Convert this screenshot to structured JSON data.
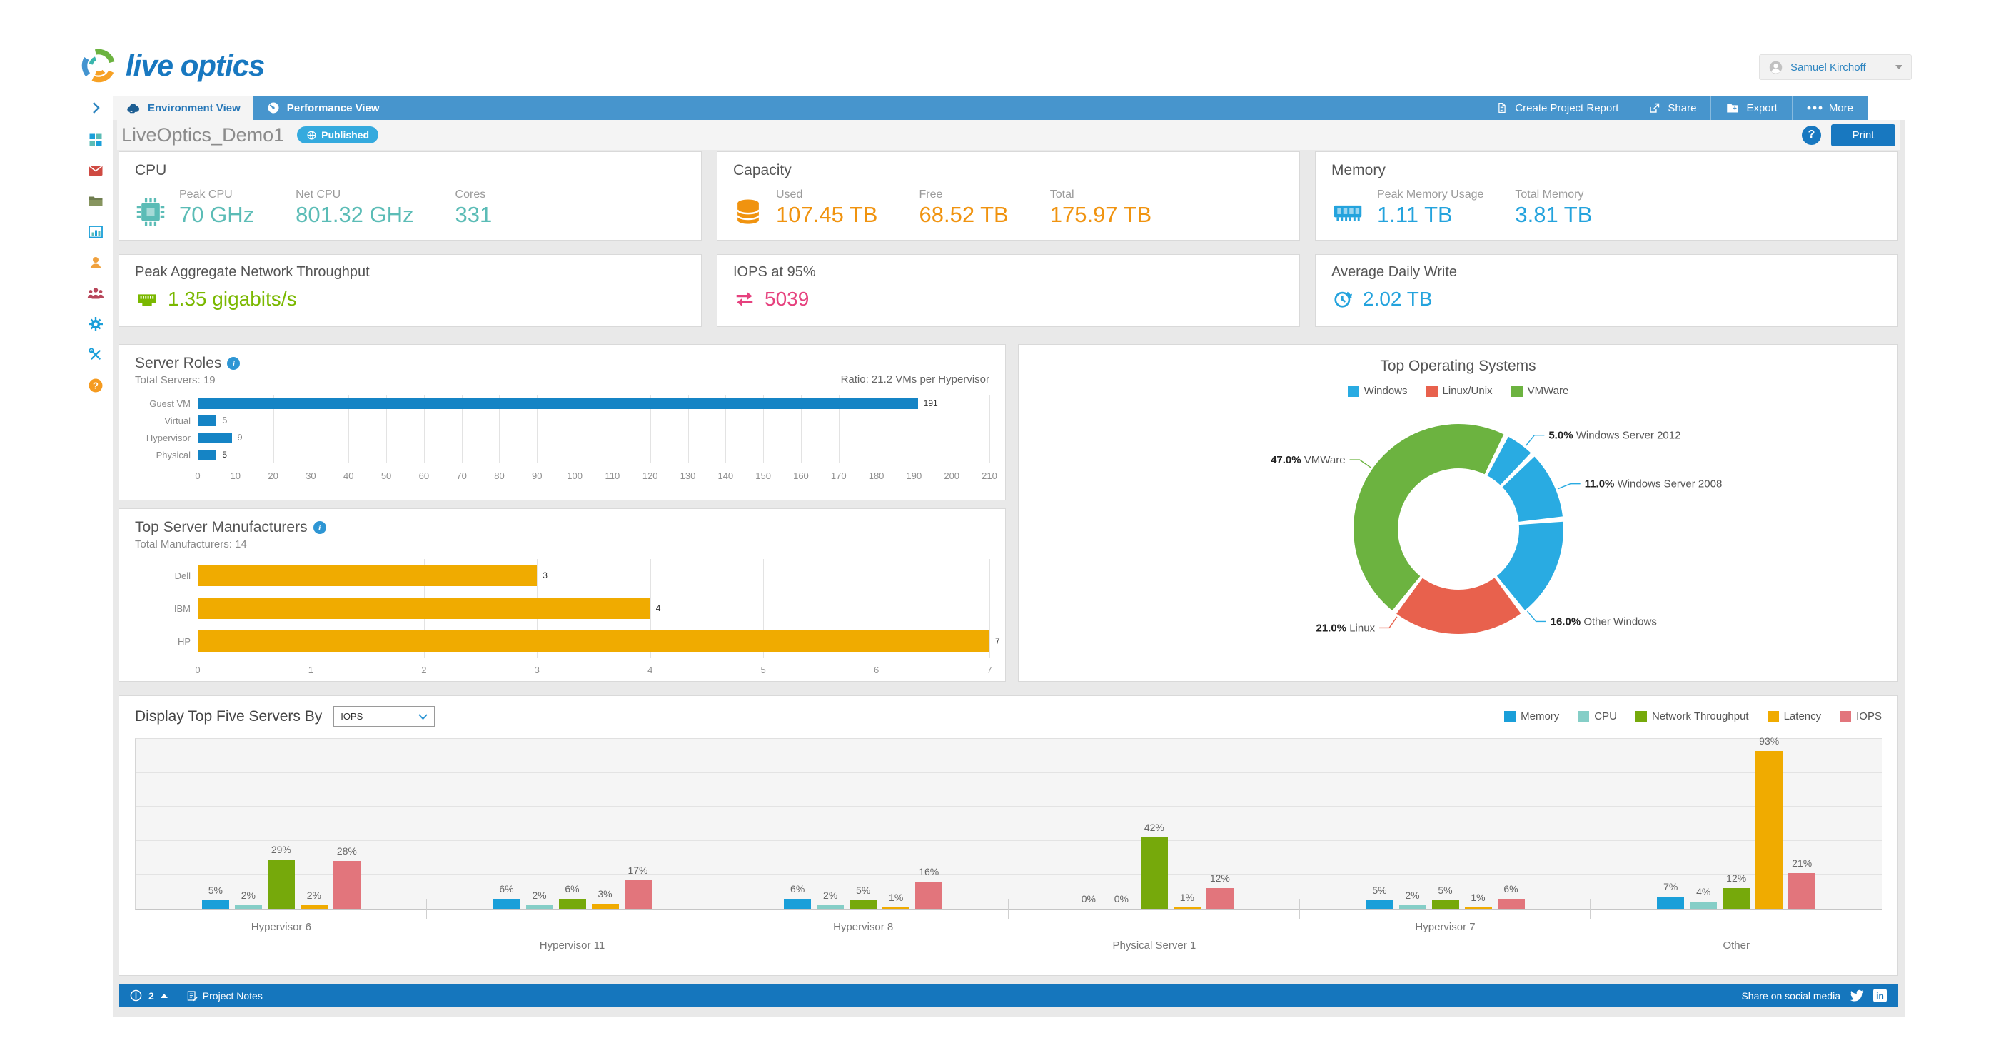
{
  "header": {
    "logo_text": "live optics",
    "user_name": "Samuel Kirchoff"
  },
  "nav": {
    "tabs": [
      {
        "label": "Environment View",
        "active": true
      },
      {
        "label": "Performance View",
        "active": false
      }
    ],
    "actions": [
      {
        "label": "Create Project Report"
      },
      {
        "label": "Share"
      },
      {
        "label": "Export"
      },
      {
        "label": "More"
      }
    ]
  },
  "title_bar": {
    "project_name": "LiveOptics_Demo1",
    "status_badge": "Published",
    "help_label": "?",
    "print_label": "Print"
  },
  "cards": {
    "cpu": {
      "title": "CPU",
      "accent": "#5bbcb6",
      "metrics": [
        {
          "label": "Peak CPU",
          "value": "70 GHz"
        },
        {
          "label": "Net CPU",
          "value": "801.32 GHz"
        },
        {
          "label": "Cores",
          "value": "331"
        }
      ]
    },
    "capacity": {
      "title": "Capacity",
      "accent": "#f0930f",
      "metrics": [
        {
          "label": "Used",
          "value": "107.45 TB"
        },
        {
          "label": "Free",
          "value": "68.52 TB"
        },
        {
          "label": "Total",
          "value": "175.97 TB"
        }
      ]
    },
    "memory": {
      "title": "Memory",
      "accent": "#24a3dd",
      "metrics": [
        {
          "label": "Peak Memory Usage",
          "value": "1.11 TB"
        },
        {
          "label": "Total Memory",
          "value": "3.81 TB"
        }
      ]
    },
    "network": {
      "title": "Peak Aggregate Network Throughput",
      "accent": "#7ab800",
      "value": "1.35 gigabits/s"
    },
    "iops": {
      "title": "IOPS at 95%",
      "accent": "#e6417e",
      "value": "5039"
    },
    "daily_write": {
      "title": "Average Daily Write",
      "accent": "#24a3dd",
      "value": "2.02 TB"
    }
  },
  "chart_data": {
    "server_roles": {
      "type": "bar",
      "orientation": "horizontal",
      "title": "Server Roles",
      "subtitle": "Total Servers: 19",
      "annotation": "Ratio: 21.2 VMs per Hypervisor",
      "categories": [
        "Guest VM",
        "Virtual",
        "Hypervisor",
        "Physical"
      ],
      "values": [
        191,
        5,
        9,
        5
      ],
      "xlim": [
        0,
        210
      ],
      "tick_step": 10,
      "bar_color": "#1584c5",
      "grid": true
    },
    "manufacturers": {
      "type": "bar",
      "orientation": "horizontal",
      "title": "Top Server Manufacturers",
      "subtitle": "Total Manufacturers: 14",
      "categories": [
        "Dell",
        "IBM",
        "HP"
      ],
      "values": [
        3,
        4,
        7
      ],
      "xlim": [
        0,
        7
      ],
      "tick_step": 1,
      "bar_color": "#f0ab00",
      "grid": true
    },
    "operating_systems": {
      "type": "pie",
      "title": "Top Operating Systems",
      "legend": [
        {
          "label": "Windows",
          "color": "#29abe2"
        },
        {
          "label": "Linux/Unix",
          "color": "#e8614d"
        },
        {
          "label": "VMWare",
          "color": "#6cb340"
        }
      ],
      "slices": [
        {
          "label": "VMWare",
          "pct": 47.0,
          "color": "#6cb340"
        },
        {
          "label": "Windows Server 2012",
          "pct": 5.0,
          "color": "#29abe2"
        },
        {
          "label": "Windows Server 2008",
          "pct": 11.0,
          "color": "#29abe2"
        },
        {
          "label": "Other Windows",
          "pct": 16.0,
          "color": "#29abe2"
        },
        {
          "label": "Linux",
          "pct": 21.0,
          "color": "#e8614d"
        }
      ],
      "start_pct": 61.3,
      "donut": true
    },
    "top_servers": {
      "type": "bar",
      "orientation": "vertical",
      "heading": "Display Top Five Servers By",
      "dropdown_value": "IOPS",
      "ylim": [
        0,
        100
      ],
      "grid_step_pct": 20,
      "value_suffix": "%",
      "series": [
        {
          "name": "Memory",
          "color": "#1a9fd9"
        },
        {
          "name": "CPU",
          "color": "#85cec7"
        },
        {
          "name": "Network Throughput",
          "color": "#76a90b"
        },
        {
          "name": "Latency",
          "color": "#f0ab00"
        },
        {
          "name": "IOPS",
          "color": "#e2757c"
        }
      ],
      "groups": [
        {
          "name": "Hypervisor 6",
          "values": [
            5,
            2,
            29,
            2,
            28
          ]
        },
        {
          "name": "Hypervisor 11",
          "values": [
            6,
            2,
            6,
            3,
            17
          ]
        },
        {
          "name": "Hypervisor 8",
          "values": [
            6,
            2,
            5,
            1,
            16
          ]
        },
        {
          "name": "Physical Server 1",
          "values": [
            0,
            0,
            42,
            1,
            12
          ]
        },
        {
          "name": "Hypervisor 7",
          "values": [
            5,
            2,
            5,
            1,
            6
          ]
        },
        {
          "name": "Other",
          "values": [
            7,
            4,
            12,
            93,
            21
          ]
        }
      ]
    }
  },
  "sidebar": {
    "items": [
      "dashboard",
      "mail",
      "projects",
      "reports",
      "user",
      "team",
      "settings",
      "tools",
      "help"
    ]
  },
  "footer": {
    "alert_count": "2",
    "notes_label": "Project Notes",
    "share_label": "Share on social media"
  }
}
